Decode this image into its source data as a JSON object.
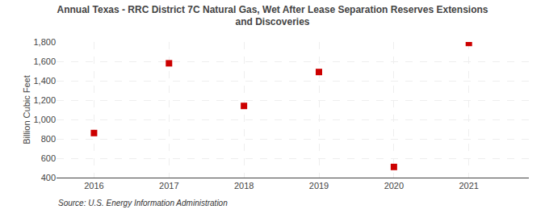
{
  "chart_data": {
    "type": "scatter",
    "title": "Annual Texas - RRC District 7C Natural Gas, Wet After Lease Separation Reserves Extensions\nand Discoveries",
    "ylabel": "Billion Cubic Feet",
    "source": "Source: U.S. Energy Information Administration",
    "x": [
      2016,
      2017,
      2018,
      2019,
      2020,
      2021
    ],
    "values": [
      860,
      1580,
      1140,
      1490,
      510,
      1790
    ],
    "color": "#cc0000",
    "marker": "square",
    "xlim": [
      2015.5,
      2021.8
    ],
    "xticks": [
      2016,
      2017,
      2018,
      2019,
      2020,
      2021
    ],
    "ylim": [
      400,
      1800
    ],
    "yticks": [
      400,
      600,
      800,
      {
        "value": 1000,
        "label": "1,000"
      },
      {
        "value": 1200,
        "label": "1,200"
      },
      {
        "value": 1400,
        "label": "1,400"
      },
      {
        "value": 1600,
        "label": "1,600"
      },
      {
        "value": 1800,
        "label": "1,800"
      }
    ],
    "grid": true
  }
}
